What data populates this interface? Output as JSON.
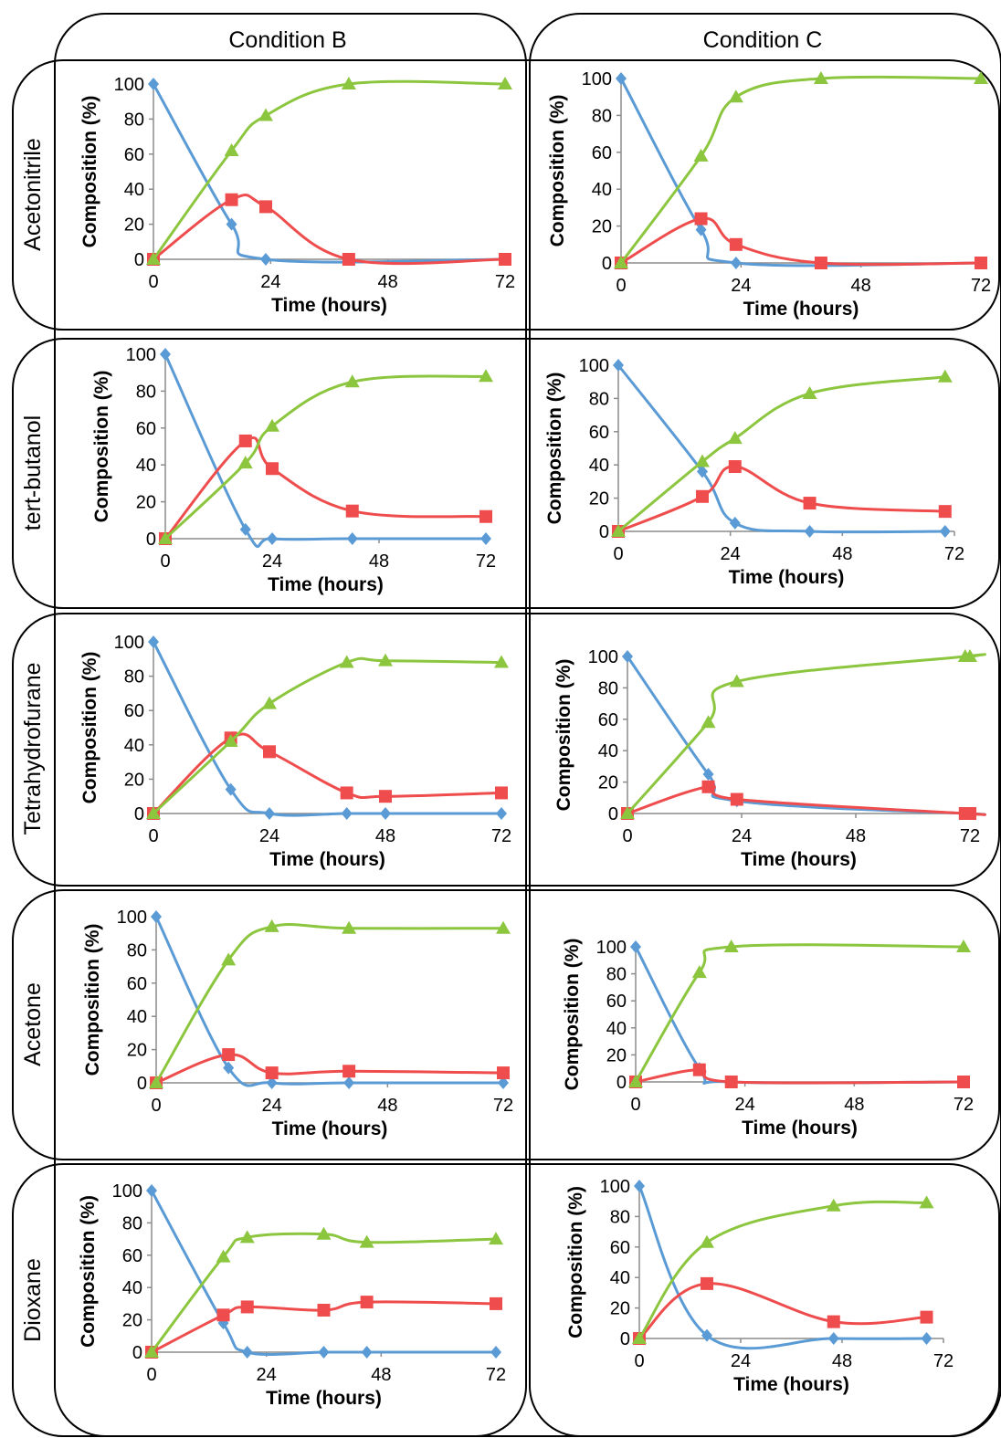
{
  "headers": {
    "col_b": "Condition B",
    "col_c": "Condition C"
  },
  "rows": [
    "Acetonitrile",
    "tert-butanol",
    "Tetrahydrofurane",
    "Acetone",
    "Dioxane"
  ],
  "series_colors": [
    "#5b9bd5",
    "#ef4d4d",
    "#8cc63f"
  ],
  "chart_data": [
    {
      "type": "line",
      "panel": "Acetonitrile / Condition B",
      "xlabel": "Time (hours)",
      "ylabel": "Composition (%)",
      "xticks": [
        "0",
        "24",
        "48",
        "72"
      ],
      "yticks": [
        "0",
        "20",
        "40",
        "60",
        "80",
        "100"
      ],
      "xlim": [
        0,
        72
      ],
      "ylim": [
        0,
        100
      ],
      "series": [
        {
          "marker": "diamond",
          "x": [
            0,
            16,
            23,
            72
          ],
          "y": [
            100,
            20,
            0,
            0
          ]
        },
        {
          "marker": "square",
          "x": [
            0,
            16,
            23,
            40,
            72
          ],
          "y": [
            0,
            34,
            30,
            0,
            0
          ]
        },
        {
          "marker": "triangle",
          "x": [
            0,
            16,
            23,
            40,
            72
          ],
          "y": [
            0,
            62,
            82,
            100,
            100
          ]
        }
      ]
    },
    {
      "type": "line",
      "panel": "Acetonitrile / Condition C",
      "xlabel": "Time (hours)",
      "ylabel": "Composition (%)",
      "xticks": [
        "0",
        "24",
        "48",
        "72"
      ],
      "yticks": [
        "0",
        "20",
        "40",
        "60",
        "80",
        "100"
      ],
      "xlim": [
        0,
        72
      ],
      "ylim": [
        0,
        100
      ],
      "series": [
        {
          "marker": "diamond",
          "x": [
            0,
            16,
            23,
            72
          ],
          "y": [
            100,
            18,
            0,
            0
          ]
        },
        {
          "marker": "square",
          "x": [
            0,
            16,
            23,
            40,
            72
          ],
          "y": [
            0,
            24,
            10,
            0,
            0
          ]
        },
        {
          "marker": "triangle",
          "x": [
            0,
            16,
            23,
            40,
            72
          ],
          "y": [
            0,
            58,
            90,
            100,
            100
          ]
        }
      ]
    },
    {
      "type": "line",
      "panel": "tert-butanol / Condition B",
      "xlabel": "Time (hours)",
      "ylabel": "Composition (%)",
      "xticks": [
        "0",
        "24",
        "48",
        "72"
      ],
      "yticks": [
        "0",
        "20",
        "40",
        "60",
        "80",
        "100"
      ],
      "xlim": [
        0,
        72
      ],
      "ylim": [
        0,
        100
      ],
      "series": [
        {
          "marker": "diamond",
          "x": [
            0,
            18,
            24,
            42,
            72
          ],
          "y": [
            100,
            5,
            0,
            0,
            0
          ]
        },
        {
          "marker": "square",
          "x": [
            0,
            18,
            24,
            42,
            72
          ],
          "y": [
            0,
            53,
            38,
            15,
            12
          ]
        },
        {
          "marker": "triangle",
          "x": [
            0,
            18,
            24,
            42,
            72
          ],
          "y": [
            0,
            41,
            61,
            85,
            88
          ]
        }
      ]
    },
    {
      "type": "line",
      "panel": "tert-butanol / Condition C",
      "xlabel": "Time (hours)",
      "ylabel": "Composition (%)",
      "xticks": [
        "0",
        "24",
        "48",
        "72"
      ],
      "yticks": [
        "0",
        "20",
        "40",
        "60",
        "80",
        "100"
      ],
      "xlim": [
        0,
        72
      ],
      "ylim": [
        0,
        100
      ],
      "series": [
        {
          "marker": "diamond",
          "x": [
            0,
            18,
            25,
            41,
            70
          ],
          "y": [
            100,
            36,
            5,
            0,
            0
          ]
        },
        {
          "marker": "square",
          "x": [
            0,
            18,
            25,
            41,
            70
          ],
          "y": [
            0,
            21,
            39,
            17,
            12
          ]
        },
        {
          "marker": "triangle",
          "x": [
            0,
            18,
            25,
            41,
            70
          ],
          "y": [
            0,
            42,
            56,
            83,
            93
          ]
        }
      ]
    },
    {
      "type": "line",
      "panel": "Tetrahydrofurane / Condition B",
      "xlabel": "Time (hours)",
      "ylabel": "Composition (%)",
      "xticks": [
        "0",
        "24",
        "48",
        "72"
      ],
      "yticks": [
        "0",
        "20",
        "40",
        "60",
        "80",
        "100"
      ],
      "xlim": [
        0,
        72
      ],
      "ylim": [
        0,
        100
      ],
      "series": [
        {
          "marker": "diamond",
          "x": [
            0,
            16,
            24,
            40,
            48,
            72
          ],
          "y": [
            100,
            14,
            0,
            0,
            0,
            0
          ]
        },
        {
          "marker": "square",
          "x": [
            0,
            16,
            24,
            40,
            48,
            72
          ],
          "y": [
            0,
            44,
            36,
            12,
            10,
            12
          ]
        },
        {
          "marker": "triangle",
          "x": [
            0,
            16,
            24,
            40,
            48,
            72
          ],
          "y": [
            0,
            42,
            64,
            88,
            89,
            88
          ]
        }
      ]
    },
    {
      "type": "line",
      "panel": "Tetrahydrofurane / Condition C",
      "xlabel": "Time (hours)",
      "ylabel": "Composition (%)",
      "xticks": [
        "0",
        "24",
        "48",
        "72"
      ],
      "yticks": [
        "0",
        "20",
        "40",
        "60",
        "80",
        "100"
      ],
      "xlim": [
        0,
        72
      ],
      "ylim": [
        0,
        100
      ],
      "series": [
        {
          "marker": "diamond",
          "x": [
            0,
            17,
            23,
            71,
            72
          ],
          "y": [
            100,
            25,
            8,
            0,
            0
          ]
        },
        {
          "marker": "square",
          "x": [
            0,
            17,
            23,
            71,
            72
          ],
          "y": [
            0,
            17,
            9,
            0,
            0
          ]
        },
        {
          "marker": "triangle",
          "x": [
            0,
            17,
            23,
            71,
            72
          ],
          "y": [
            0,
            58,
            84,
            100,
            100
          ]
        }
      ]
    },
    {
      "type": "line",
      "panel": "Acetone / Condition B",
      "xlabel": "Time (hours)",
      "ylabel": "Composition (%)",
      "xticks": [
        "0",
        "24",
        "48",
        "72"
      ],
      "yticks": [
        "0",
        "20",
        "40",
        "60",
        "80",
        "100"
      ],
      "xlim": [
        0,
        72
      ],
      "ylim": [
        0,
        100
      ],
      "series": [
        {
          "marker": "diamond",
          "x": [
            0,
            15,
            24,
            40,
            72
          ],
          "y": [
            100,
            9,
            0,
            0,
            0
          ]
        },
        {
          "marker": "square",
          "x": [
            0,
            15,
            24,
            40,
            72
          ],
          "y": [
            0,
            17,
            6,
            7,
            6
          ]
        },
        {
          "marker": "triangle",
          "x": [
            0,
            15,
            24,
            40,
            72
          ],
          "y": [
            0,
            74,
            94,
            93,
            93
          ]
        }
      ]
    },
    {
      "type": "line",
      "panel": "Acetone / Condition C",
      "xlabel": "Time (hours)",
      "ylabel": "Composition (%)",
      "xticks": [
        "0",
        "24",
        "48",
        "72"
      ],
      "yticks": [
        "0",
        "20",
        "40",
        "60",
        "80",
        "100"
      ],
      "xlim": [
        0,
        72
      ],
      "ylim": [
        0,
        100
      ],
      "series": [
        {
          "marker": "diamond",
          "x": [
            0,
            14,
            21,
            72
          ],
          "y": [
            100,
            10,
            0,
            0
          ]
        },
        {
          "marker": "square",
          "x": [
            0,
            14,
            21,
            72
          ],
          "y": [
            0,
            9,
            0,
            0
          ]
        },
        {
          "marker": "triangle",
          "x": [
            0,
            14,
            21,
            72
          ],
          "y": [
            0,
            81,
            100,
            100
          ]
        }
      ]
    },
    {
      "type": "line",
      "panel": "Dioxane / Condition B",
      "xlabel": "Time (hours)",
      "ylabel": "Composition (%)",
      "xticks": [
        "0",
        "24",
        "48",
        "72"
      ],
      "yticks": [
        "0",
        "20",
        "40",
        "60",
        "80",
        "100"
      ],
      "xlim": [
        0,
        72
      ],
      "ylim": [
        0,
        100
      ],
      "series": [
        {
          "marker": "diamond",
          "x": [
            0,
            15,
            20,
            36,
            45,
            72
          ],
          "y": [
            100,
            18,
            0,
            0,
            0,
            0
          ]
        },
        {
          "marker": "square",
          "x": [
            0,
            15,
            20,
            36,
            45,
            72
          ],
          "y": [
            0,
            23,
            28,
            26,
            31,
            30
          ]
        },
        {
          "marker": "triangle",
          "x": [
            0,
            15,
            20,
            36,
            45,
            72
          ],
          "y": [
            0,
            59,
            71,
            73,
            68,
            70
          ]
        }
      ]
    },
    {
      "type": "line",
      "panel": "Dioxane / Condition C",
      "xlabel": "Time (hours)",
      "ylabel": "Composition (%)",
      "xticks": [
        "0",
        "24",
        "48",
        "72"
      ],
      "yticks": [
        "0",
        "20",
        "40",
        "60",
        "80",
        "100"
      ],
      "xlim": [
        0,
        72
      ],
      "ylim": [
        0,
        100
      ],
      "series": [
        {
          "marker": "diamond",
          "x": [
            0,
            16,
            46,
            68
          ],
          "y": [
            100,
            2,
            0,
            0
          ]
        },
        {
          "marker": "square",
          "x": [
            0,
            16,
            46,
            68
          ],
          "y": [
            0,
            36,
            11,
            14
          ]
        },
        {
          "marker": "triangle",
          "x": [
            0,
            16,
            46,
            68
          ],
          "y": [
            0,
            63,
            87,
            89
          ]
        }
      ]
    }
  ]
}
